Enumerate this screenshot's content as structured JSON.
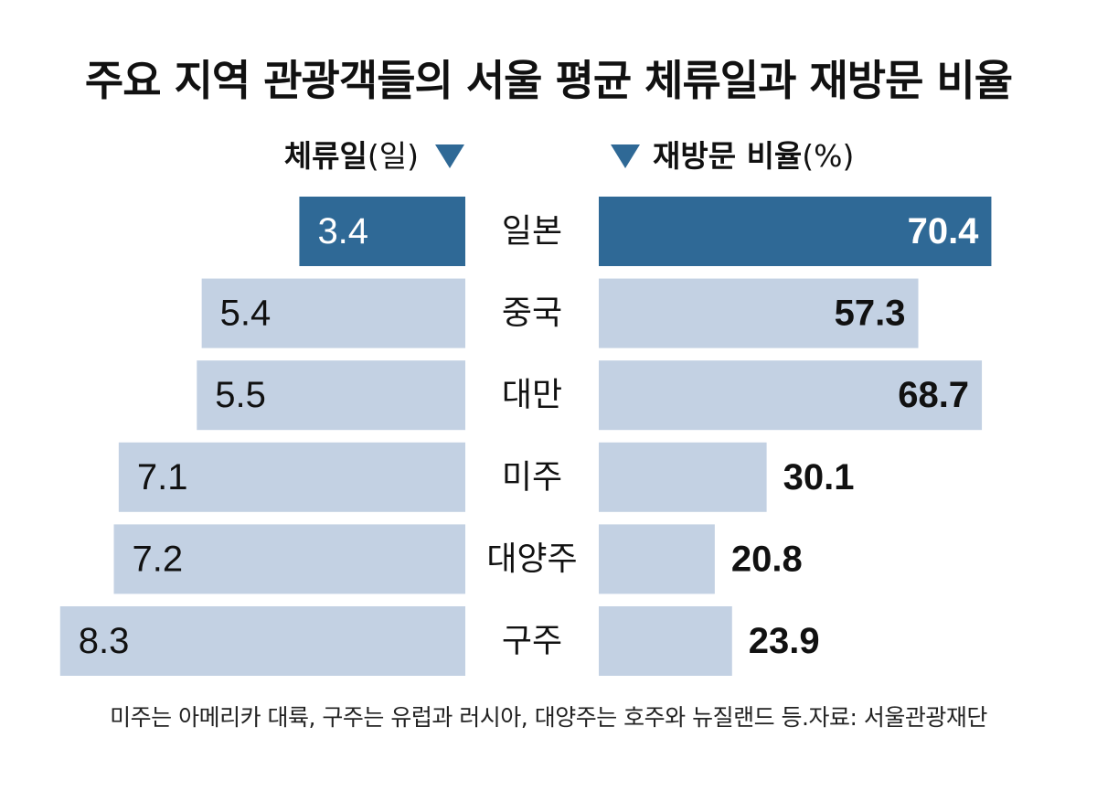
{
  "title": "주요 지역 관광객들의 서울 평균 체류일과 재방문 비율",
  "legend": {
    "left_main": "체류일",
    "left_unit": "(일)",
    "right_main": "재방문 비율",
    "right_unit": "(%)"
  },
  "colors": {
    "highlight": "#2f6996",
    "bar": "#c3d1e3",
    "text": "#111111",
    "highlight_text": "#ffffff"
  },
  "chart_data": {
    "type": "bar",
    "orientation": "horizontal-butterfly",
    "categories": [
      "일본",
      "중국",
      "대만",
      "미주",
      "대양주",
      "구주"
    ],
    "highlight_category": "일본",
    "series": [
      {
        "name": "체류일",
        "unit": "일",
        "values": [
          3.4,
          5.4,
          5.5,
          7.1,
          7.2,
          8.3
        ],
        "labels": [
          "3.4",
          "5.4",
          "5.5",
          "7.1",
          "7.2",
          "8.3"
        ]
      },
      {
        "name": "재방문 비율",
        "unit": "%",
        "values": [
          70.4,
          57.3,
          68.7,
          30.1,
          20.8,
          23.9
        ],
        "labels": [
          "70.4",
          "57.3",
          "68.7",
          "30.1",
          "20.8",
          "23.9"
        ]
      }
    ],
    "grid": false
  },
  "note": "미주는 아메리카 대륙, 구주는 유럽과 러시아, 대양주는 호주와 뉴질랜드 등.자료: 서울관광재단"
}
